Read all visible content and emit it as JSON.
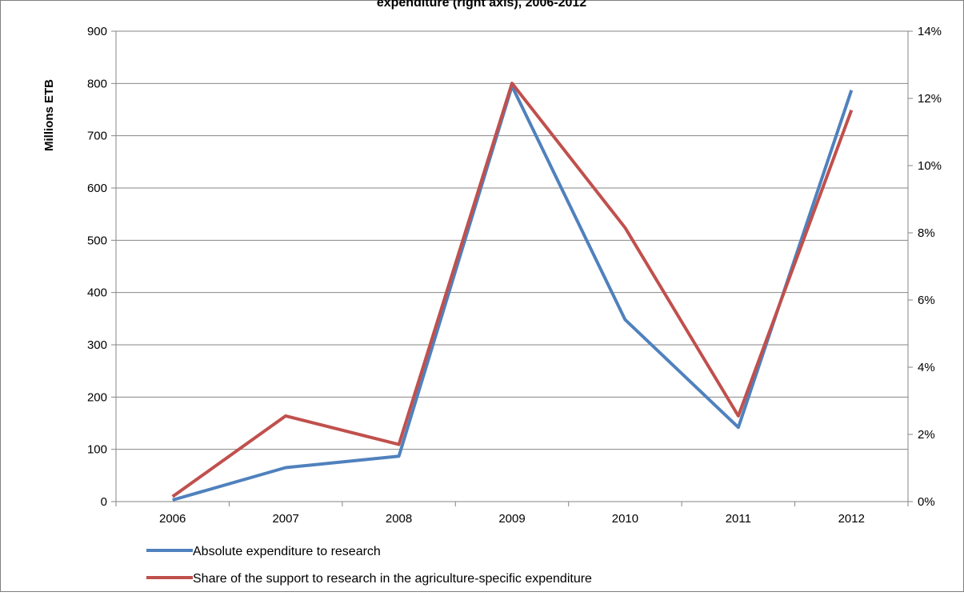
{
  "chart_data": {
    "type": "line",
    "title": "expenditure (right axis), 2006-2012",
    "ylabel": "Millions ETB",
    "y2label": "",
    "categories": [
      "2006",
      "2007",
      "2008",
      "2009",
      "2010",
      "2011",
      "2012"
    ],
    "ylim": [
      0,
      900
    ],
    "y_ticks": [
      "0",
      "100",
      "200",
      "300",
      "400",
      "500",
      "600",
      "700",
      "800",
      "900"
    ],
    "y2lim": [
      0,
      14
    ],
    "y2_ticks": [
      "0%",
      "2%",
      "4%",
      "6%",
      "8%",
      "10%",
      "12%",
      "14%"
    ],
    "grid": true,
    "legend_position": "bottom-left",
    "series": [
      {
        "name": "Absolute expenditure to research",
        "axis": "left",
        "color": "#4F81BD",
        "values": [
          3,
          65,
          87,
          795,
          348,
          142,
          787
        ]
      },
      {
        "name": "Share of the support to research in the agriculture-specific expenditure",
        "axis": "right",
        "color": "#C0504D",
        "values": [
          0.15,
          2.55,
          1.7,
          12.45,
          8.15,
          2.55,
          11.65
        ]
      }
    ]
  }
}
